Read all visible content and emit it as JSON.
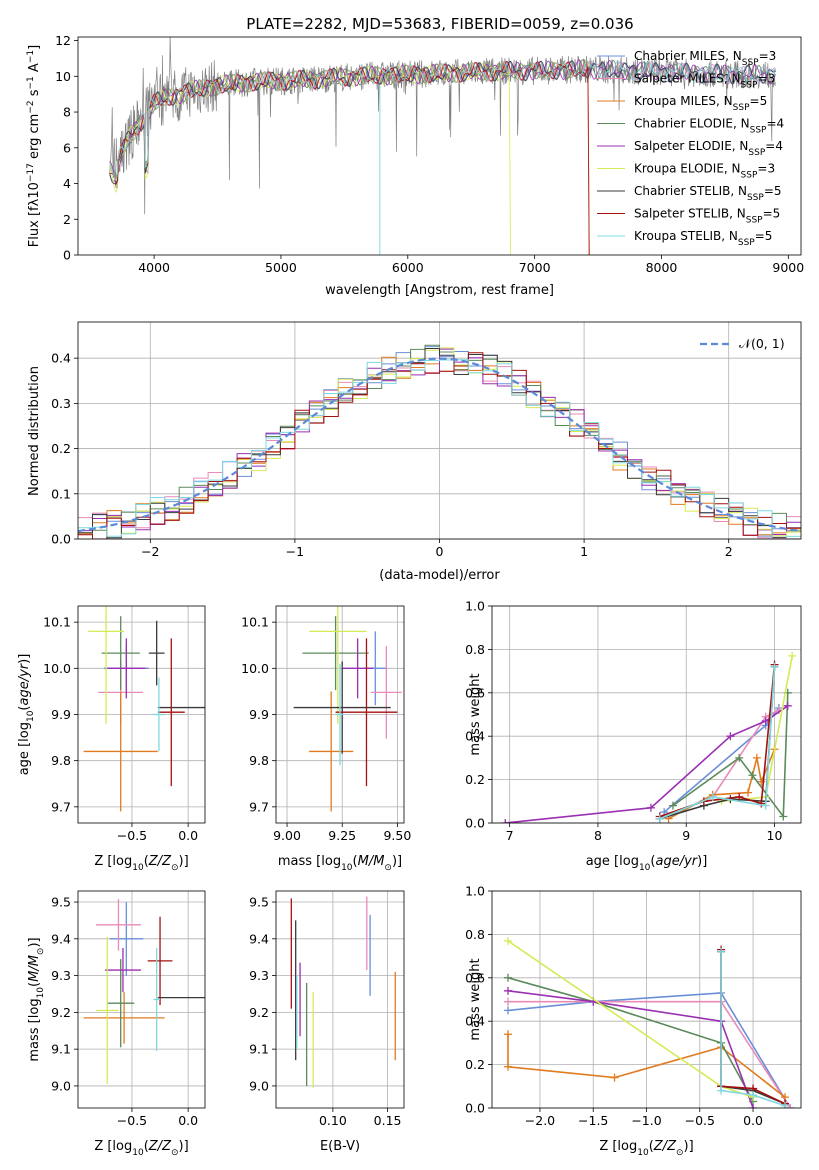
{
  "title": "PLATE=2282, MJD=53683, FIBERID=0059, z=0.036",
  "colors": {
    "Chabrier MILES": "#6a8fd8",
    "Salpeter MILES": "#e98ab8",
    "Kroupa MILES": "#e07b1f",
    "Chabrier ELODIE": "#5b8a5b",
    "Salpeter ELODIE": "#9b2fb3",
    "Kroupa ELODIE": "#d6ea55",
    "Chabrier STELIB": "#3a3a3a",
    "Salpeter STELIB": "#a51010",
    "Kroupa STELIB": "#7fd8e0",
    "data": "#808080"
  },
  "chart_data": [
    {
      "id": "spectrum",
      "type": "line",
      "title": "PLATE=2282, MJD=53683, FIBERID=0059, z=0.036",
      "xlabel": "wavelength [Angstrom, rest frame]",
      "ylabel": "Flux [fλ10^-17 erg cm^-2 s^-1 A^-1]",
      "xlim": [
        3400,
        9100
      ],
      "ylim": [
        0,
        12.2
      ],
      "xticks": [
        4000,
        5000,
        6000,
        7000,
        8000,
        9000
      ],
      "yticks": [
        0,
        2,
        4,
        6,
        8,
        10,
        12
      ],
      "legend": "right",
      "series": [
        {
          "name": "Chabrier MILES, N_SSP=3",
          "color": "#6a8fd8"
        },
        {
          "name": "Salpeter MILES, N_SSP=3",
          "color": "#e98ab8"
        },
        {
          "name": "Kroupa MILES, N_SSP=5",
          "color": "#e07b1f"
        },
        {
          "name": "Chabrier ELODIE, N_SSP=4",
          "color": "#5b8a5b"
        },
        {
          "name": "Salpeter ELODIE, N_SSP=4",
          "color": "#9b2fb3"
        },
        {
          "name": "Kroupa ELODIE, N_SSP=3",
          "color": "#d6ea55"
        },
        {
          "name": "Chabrier STELIB, N_SSP=5",
          "color": "#3a3a3a"
        },
        {
          "name": "Salpeter STELIB, N_SSP=5",
          "color": "#a51010"
        },
        {
          "name": "Kroupa STELIB, N_SSP=5",
          "color": "#7fd8e0"
        }
      ],
      "continuum": {
        "x": [
          3650,
          3700,
          3800,
          3900,
          4000,
          4100,
          4300,
          4500,
          4800,
          5200,
          5600,
          6000,
          6400,
          6800,
          7000,
          7200,
          7400,
          7600,
          7800,
          8200,
          8600,
          8900
        ],
        "y": [
          6.0,
          5.0,
          6.5,
          7.5,
          8.5,
          8.8,
          9.2,
          9.5,
          9.7,
          9.8,
          10.0,
          10.1,
          10.2,
          10.3,
          10.3,
          10.35,
          10.4,
          10.35,
          10.3,
          10.2,
          10.1,
          10.1
        ]
      }
    },
    {
      "id": "residuals",
      "type": "bar",
      "xlabel": "(data-model)/error",
      "ylabel": "Normed distribution",
      "xlim": [
        -2.5,
        2.5
      ],
      "ylim": [
        0,
        0.48
      ],
      "xticks": [
        -2,
        -1,
        0,
        1,
        2
      ],
      "yticks": [
        0.0,
        0.1,
        0.2,
        0.3,
        0.4
      ],
      "legend": "top-right",
      "legend_label": "𝒩(0, 1)",
      "bin_width": 0.1
    },
    {
      "id": "age_vs_Z",
      "type": "scatter",
      "xlabel": "Z [log10(Z/Z⊙)]",
      "ylabel": "age  [log10(age/yr)]",
      "xlim": [
        -0.98,
        0.15
      ],
      "ylim": [
        9.665,
        10.135
      ],
      "xticks": [
        -0.5,
        0.0
      ],
      "yticks": [
        9.7,
        9.8,
        9.9,
        10.0,
        10.1
      ],
      "points": [
        {
          "model": "Chabrier MILES",
          "x": -0.55,
          "xerr": 0.2,
          "y": 10.0,
          "yerr": 0.05
        },
        {
          "model": "Salpeter MILES",
          "x": -0.6,
          "xerr": 0.2,
          "y": 9.948,
          "yerr": 0.07
        },
        {
          "model": "Kroupa MILES",
          "x": -0.6,
          "xerr": 0.33,
          "y": 9.82,
          "yerr": 0.13
        },
        {
          "model": "Chabrier ELODIE",
          "x": -0.6,
          "xerr": 0.17,
          "y": 10.033,
          "yerr": 0.08
        },
        {
          "model": "Salpeter ELODIE",
          "x": -0.55,
          "xerr": 0.17,
          "y": 10.0,
          "yerr": 0.065
        },
        {
          "model": "Kroupa ELODIE",
          "x": -0.73,
          "xerr": 0.16,
          "y": 10.08,
          "yerr": 0.2
        },
        {
          "model": "Chabrier STELIB",
          "x": -0.28,
          "xerr": 0.07,
          "y": 10.033,
          "yerr": 0.07
        },
        {
          "model": "Chabrier STELIB",
          "x": -0.02,
          "xerr": 0.25,
          "y": 9.915,
          "yerr": 0.0
        },
        {
          "model": "Salpeter STELIB",
          "x": -0.15,
          "xerr": 0.12,
          "y": 9.905,
          "yerr": 0.16
        },
        {
          "model": "Kroupa STELIB",
          "x": -0.26,
          "xerr": 0.06,
          "y": 9.9,
          "yerr": 0.08
        }
      ]
    },
    {
      "id": "age_vs_mass",
      "type": "scatter",
      "xlabel": "mass [log10(M/M⊙)]",
      "ylabel": "",
      "xlim": [
        8.95,
        9.53
      ],
      "ylim": [
        9.665,
        10.135
      ],
      "xticks": [
        9.0,
        9.25,
        9.5
      ],
      "yticks": [
        9.7,
        9.8,
        9.9,
        10.0,
        10.1
      ],
      "points": [
        {
          "model": "Chabrier MILES",
          "x": 9.4,
          "xerr": 0.05,
          "y": 10.0,
          "yerr": 0.08
        },
        {
          "model": "Salpeter MILES",
          "x": 9.45,
          "xerr": 0.07,
          "y": 9.948,
          "yerr": 0.1
        },
        {
          "model": "Kroupa MILES",
          "x": 9.2,
          "xerr": 0.1,
          "y": 9.82,
          "yerr": 0.13
        },
        {
          "model": "Chabrier ELODIE",
          "x": 9.22,
          "xerr": 0.15,
          "y": 10.033,
          "yerr": 0.08
        },
        {
          "model": "Salpeter ELODIE",
          "x": 9.32,
          "xerr": 0.07,
          "y": 10.0,
          "yerr": 0.065
        },
        {
          "model": "Kroupa ELODIE",
          "x": 9.23,
          "xerr": 0.13,
          "y": 10.08,
          "yerr": 0.2
        },
        {
          "model": "Chabrier STELIB",
          "x": 9.25,
          "xerr": 0.22,
          "y": 9.915,
          "yerr": 0.1
        },
        {
          "model": "Salpeter STELIB",
          "x": 9.36,
          "xerr": 0.14,
          "y": 9.905,
          "yerr": 0.16
        },
        {
          "model": "Kroupa STELIB",
          "x": 9.24,
          "xerr": 0.02,
          "y": 9.9,
          "yerr": 0.11
        }
      ]
    },
    {
      "id": "weight_vs_age",
      "type": "line",
      "xlabel": "age  [log10(age/yr)]",
      "ylabel": "mass weight",
      "xlim": [
        6.8,
        10.3
      ],
      "ylim": [
        0,
        1.0
      ],
      "xticks": [
        7,
        8,
        9,
        10
      ],
      "yticks": [
        0.0,
        0.2,
        0.4,
        0.6,
        0.8,
        1.0
      ],
      "series": [
        {
          "model": "Chabrier MILES",
          "x": [
            8.75,
            9.9,
            10.05
          ],
          "y": [
            0.05,
            0.45,
            0.53
          ]
        },
        {
          "model": "Salpeter MILES",
          "x": [
            8.7,
            9.3,
            9.9,
            10.05
          ],
          "y": [
            0.02,
            0.12,
            0.49,
            0.52
          ]
        },
        {
          "model": "Kroupa MILES",
          "x": [
            8.8,
            9.3,
            9.7,
            9.8,
            9.85,
            10.0
          ],
          "y": [
            0.02,
            0.13,
            0.14,
            0.3,
            0.19,
            0.34
          ]
        },
        {
          "model": "Chabrier ELODIE",
          "x": [
            8.85,
            9.6,
            9.75,
            10.1,
            10.15
          ],
          "y": [
            0.08,
            0.3,
            0.22,
            0.03,
            0.6
          ]
        },
        {
          "model": "Salpeter ELODIE",
          "x": [
            6.95,
            8.6,
            9.5,
            9.9,
            10.15
          ],
          "y": [
            0.0,
            0.07,
            0.4,
            0.47,
            0.54
          ]
        },
        {
          "model": "Kroupa ELODIE",
          "x": [
            9.4,
            9.9,
            10.2
          ],
          "y": [
            0.1,
            0.12,
            0.77
          ]
        },
        {
          "model": "Chabrier STELIB",
          "x": [
            8.7,
            9.2,
            9.5,
            9.9,
            10.0
          ],
          "y": [
            0.02,
            0.08,
            0.11,
            0.1,
            0.72
          ]
        },
        {
          "model": "Salpeter STELIB",
          "x": [
            8.7,
            9.2,
            9.6,
            9.85,
            10.0
          ],
          "y": [
            0.03,
            0.1,
            0.12,
            0.09,
            0.73
          ]
        },
        {
          "model": "Kroupa STELIB",
          "x": [
            8.7,
            9.3,
            9.9,
            10.0
          ],
          "y": [
            0.02,
            0.12,
            0.08,
            0.72
          ]
        }
      ]
    },
    {
      "id": "mass_vs_Z",
      "type": "scatter",
      "xlabel": "Z [log10(Z/Z⊙)]",
      "ylabel": "mass [log10(M/M⊙)]",
      "xlim": [
        -0.98,
        0.15
      ],
      "ylim": [
        8.94,
        9.53
      ],
      "xticks": [
        -0.5,
        0.0
      ],
      "yticks": [
        9.0,
        9.1,
        9.2,
        9.3,
        9.4,
        9.5
      ],
      "points": [
        {
          "model": "Chabrier MILES",
          "x": -0.55,
          "xerr": 0.15,
          "y": 9.4,
          "yerr": 0.1
        },
        {
          "model": "Salpeter MILES",
          "x": -0.62,
          "xerr": 0.2,
          "y": 9.438,
          "yerr": 0.07
        },
        {
          "model": "Kroupa MILES",
          "x": -0.57,
          "xerr": 0.36,
          "y": 9.185,
          "yerr": 0.07
        },
        {
          "model": "Chabrier ELODIE",
          "x": -0.6,
          "xerr": 0.12,
          "y": 9.225,
          "yerr": 0.12
        },
        {
          "model": "Salpeter ELODIE",
          "x": -0.58,
          "xerr": 0.16,
          "y": 9.315,
          "yerr": 0.06
        },
        {
          "model": "Kroupa ELODIE",
          "x": -0.72,
          "xerr": 0.1,
          "y": 9.205,
          "yerr": 0.2
        },
        {
          "model": "Chabrier STELIB",
          "x": -0.05,
          "xerr": 0.22,
          "y": 9.24,
          "yerr": 0.0
        },
        {
          "model": "Salpeter STELIB",
          "x": -0.25,
          "xerr": 0.11,
          "y": 9.34,
          "yerr": 0.12
        },
        {
          "model": "Kroupa STELIB",
          "x": -0.28,
          "xerr": 0.03,
          "y": 9.235,
          "yerr": 0.14
        }
      ]
    },
    {
      "id": "mass_vs_ebv",
      "type": "scatter",
      "xlabel": "E(B-V)",
      "ylabel": "",
      "xlim": [
        0.048,
        0.165
      ],
      "ylim": [
        8.94,
        9.53
      ],
      "xticks": [
        0.1,
        0.15
      ],
      "yticks": [
        9.0,
        9.1,
        9.2,
        9.3,
        9.4,
        9.5
      ],
      "points": [
        {
          "model": "Chabrier MILES",
          "x": 0.134,
          "y": 9.355,
          "yerr": 0.11
        },
        {
          "model": "Salpeter MILES",
          "x": 0.131,
          "y": 9.415,
          "yerr": 0.1
        },
        {
          "model": "Kroupa MILES",
          "x": 0.157,
          "y": 9.19,
          "yerr": 0.12
        },
        {
          "model": "Chabrier ELODIE",
          "x": 0.076,
          "y": 9.14,
          "yerr": 0.14
        },
        {
          "model": "Salpeter ELODIE",
          "x": 0.07,
          "y": 9.235,
          "yerr": 0.1
        },
        {
          "model": "Kroupa ELODIE",
          "x": 0.082,
          "y": 9.125,
          "yerr": 0.13
        },
        {
          "model": "Chabrier STELIB",
          "x": 0.066,
          "y": 9.26,
          "yerr": 0.19
        },
        {
          "model": "Salpeter STELIB",
          "x": 0.062,
          "y": 9.36,
          "yerr": 0.15
        },
        {
          "model": "Kroupa STELIB",
          "x": 0.067,
          "y": 9.2,
          "yerr": 0.1
        }
      ]
    },
    {
      "id": "weight_vs_Z",
      "type": "line",
      "xlabel": "Z [log10(Z/Z⊙)]",
      "ylabel": "mass weight",
      "xlim": [
        -2.45,
        0.45
      ],
      "ylim": [
        0,
        1.0
      ],
      "xticks": [
        -2.0,
        -1.5,
        -1.0,
        -0.5,
        0.0
      ],
      "yticks": [
        0.0,
        0.2,
        0.4,
        0.6,
        0.8,
        1.0
      ],
      "series": [
        {
          "model": "Chabrier MILES",
          "x": [
            -2.3,
            -1.5,
            -0.3,
            0.35
          ],
          "y": [
            0.45,
            0.49,
            0.53,
            0.0
          ]
        },
        {
          "model": "Salpeter MILES",
          "x": [
            -2.3,
            -1.5,
            -0.3,
            0.35
          ],
          "y": [
            0.49,
            0.49,
            0.49,
            0.0
          ]
        },
        {
          "model": "Kroupa MILES",
          "x": [
            -2.3,
            -2.3,
            -1.3,
            -0.3,
            0.3
          ],
          "y": [
            0.34,
            0.19,
            0.14,
            0.28,
            0.05
          ]
        },
        {
          "model": "Chabrier ELODIE",
          "x": [
            -2.3,
            -1.5,
            -0.3,
            0.0
          ],
          "y": [
            0.6,
            0.49,
            0.3,
            0.03
          ]
        },
        {
          "model": "Salpeter ELODIE",
          "x": [
            -2.3,
            -1.5,
            -0.3,
            0.0
          ],
          "y": [
            0.54,
            0.49,
            0.4,
            0.0
          ]
        },
        {
          "model": "Kroupa ELODIE",
          "x": [
            -2.3,
            -0.3,
            0.0
          ],
          "y": [
            0.77,
            0.1,
            0.05
          ]
        },
        {
          "model": "Chabrier STELIB",
          "x": [
            -0.3,
            -0.3,
            0.0,
            0.3
          ],
          "y": [
            0.72,
            0.1,
            0.08,
            0.02
          ]
        },
        {
          "model": "Salpeter STELIB",
          "x": [
            -0.3,
            -0.3,
            0.0,
            0.3
          ],
          "y": [
            0.73,
            0.1,
            0.09,
            0.02
          ]
        },
        {
          "model": "Kroupa STELIB",
          "x": [
            -0.3,
            -0.3,
            0.0,
            0.3
          ],
          "y": [
            0.72,
            0.08,
            0.06,
            0.01
          ]
        }
      ]
    }
  ]
}
